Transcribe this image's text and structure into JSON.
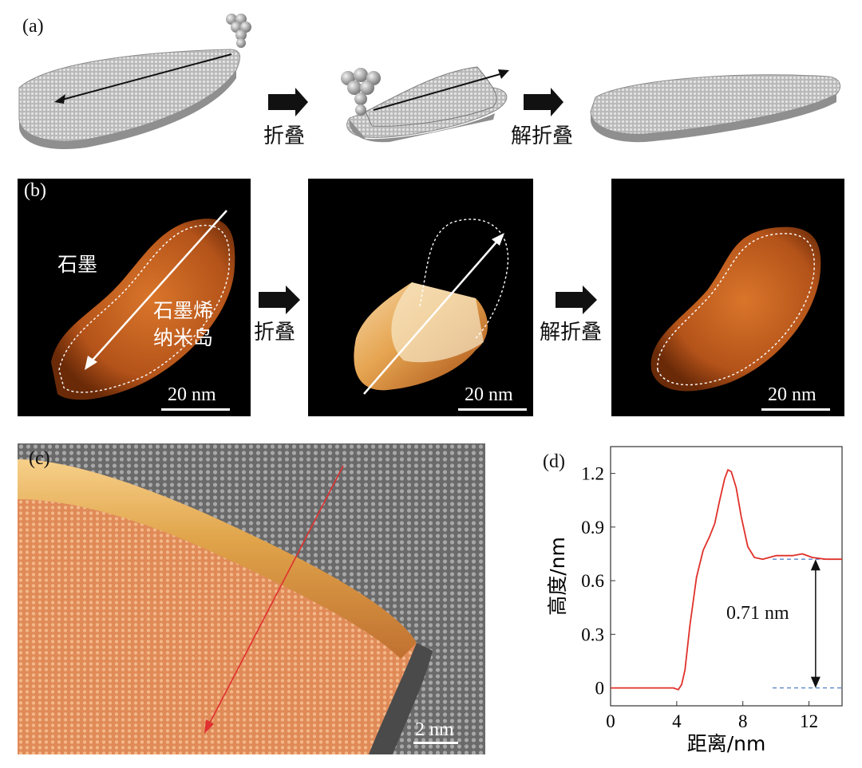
{
  "panel_a": {
    "label": "(a)",
    "step1": "折叠",
    "step2": "解折叠"
  },
  "panel_b": {
    "label": "(b)",
    "graphite": "石墨",
    "island_line1": "石墨烯",
    "island_line2": "纳米岛",
    "step1": "折叠",
    "step2": "解折叠",
    "scale1": "20 nm",
    "scale2": "20 nm",
    "scale3": "20 nm"
  },
  "panel_c": {
    "label": "(c)",
    "scale": "2 nm"
  },
  "panel_d": {
    "label": "(d)",
    "annotation": "0.71 nm"
  },
  "chart_data": {
    "type": "line",
    "xlabel": "距离/nm",
    "ylabel": "高度/nm",
    "xlim": [
      0,
      14
    ],
    "ylim": [
      -0.1,
      1.35
    ],
    "xticks": [
      0,
      4,
      8,
      12
    ],
    "yticks": [
      0,
      0.3,
      0.6,
      0.9,
      1.2
    ],
    "ytick_labels": [
      "0",
      "0.3",
      "0.6",
      "0.9",
      "1.2"
    ],
    "grid": false,
    "series": [
      {
        "color": "#e0302a",
        "x": [
          0,
          1,
          2,
          3,
          3.8,
          4.1,
          4.3,
          4.5,
          4.8,
          5.2,
          5.6,
          6.0,
          6.3,
          6.6,
          6.9,
          7.1,
          7.3,
          7.6,
          7.9,
          8.3,
          8.7,
          9.2,
          10,
          11,
          11.6,
          12.2,
          13,
          14
        ],
        "y": [
          0,
          0,
          0,
          0,
          0,
          -0.01,
          0.02,
          0.1,
          0.35,
          0.62,
          0.77,
          0.85,
          0.92,
          1.05,
          1.17,
          1.22,
          1.21,
          1.12,
          0.96,
          0.79,
          0.73,
          0.72,
          0.74,
          0.74,
          0.75,
          0.73,
          0.72,
          0.72
        ]
      }
    ],
    "reference_lines": [
      0,
      0.72
    ]
  }
}
